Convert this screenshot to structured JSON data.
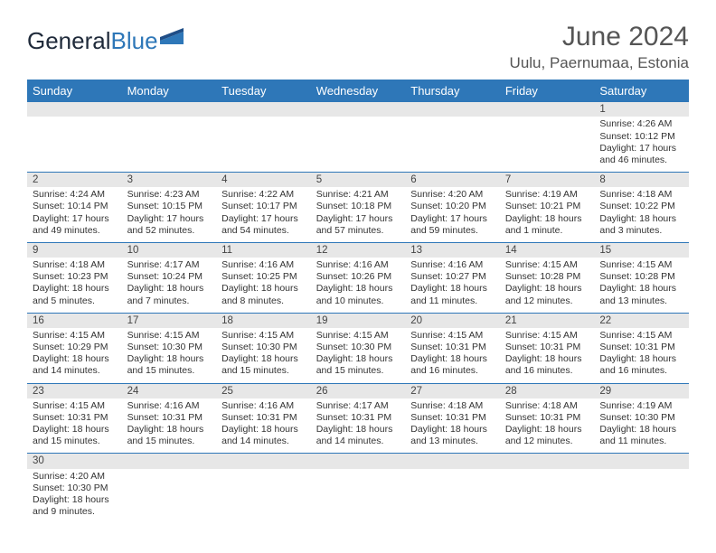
{
  "brand": {
    "part1": "General",
    "part2": "Blue"
  },
  "title": "June 2024",
  "location": "Uulu, Paernumaa, Estonia",
  "colors": {
    "header_bg": "#2e77b8",
    "header_text": "#ffffff",
    "daynum_bg": "#e7e7e7",
    "row_border": "#2e77b8",
    "text": "#333333",
    "title_text": "#555555"
  },
  "fonts": {
    "title_size_pt": 22,
    "location_size_pt": 13,
    "dayheader_size_pt": 10,
    "body_size_pt": 8,
    "family": "Arial"
  },
  "day_headers": [
    "Sunday",
    "Monday",
    "Tuesday",
    "Wednesday",
    "Thursday",
    "Friday",
    "Saturday"
  ],
  "weeks": [
    [
      null,
      null,
      null,
      null,
      null,
      null,
      {
        "n": "1",
        "sunrise": "Sunrise: 4:26 AM",
        "sunset": "Sunset: 10:12 PM",
        "daylight": "Daylight: 17 hours and 46 minutes."
      }
    ],
    [
      {
        "n": "2",
        "sunrise": "Sunrise: 4:24 AM",
        "sunset": "Sunset: 10:14 PM",
        "daylight": "Daylight: 17 hours and 49 minutes."
      },
      {
        "n": "3",
        "sunrise": "Sunrise: 4:23 AM",
        "sunset": "Sunset: 10:15 PM",
        "daylight": "Daylight: 17 hours and 52 minutes."
      },
      {
        "n": "4",
        "sunrise": "Sunrise: 4:22 AM",
        "sunset": "Sunset: 10:17 PM",
        "daylight": "Daylight: 17 hours and 54 minutes."
      },
      {
        "n": "5",
        "sunrise": "Sunrise: 4:21 AM",
        "sunset": "Sunset: 10:18 PM",
        "daylight": "Daylight: 17 hours and 57 minutes."
      },
      {
        "n": "6",
        "sunrise": "Sunrise: 4:20 AM",
        "sunset": "Sunset: 10:20 PM",
        "daylight": "Daylight: 17 hours and 59 minutes."
      },
      {
        "n": "7",
        "sunrise": "Sunrise: 4:19 AM",
        "sunset": "Sunset: 10:21 PM",
        "daylight": "Daylight: 18 hours and 1 minute."
      },
      {
        "n": "8",
        "sunrise": "Sunrise: 4:18 AM",
        "sunset": "Sunset: 10:22 PM",
        "daylight": "Daylight: 18 hours and 3 minutes."
      }
    ],
    [
      {
        "n": "9",
        "sunrise": "Sunrise: 4:18 AM",
        "sunset": "Sunset: 10:23 PM",
        "daylight": "Daylight: 18 hours and 5 minutes."
      },
      {
        "n": "10",
        "sunrise": "Sunrise: 4:17 AM",
        "sunset": "Sunset: 10:24 PM",
        "daylight": "Daylight: 18 hours and 7 minutes."
      },
      {
        "n": "11",
        "sunrise": "Sunrise: 4:16 AM",
        "sunset": "Sunset: 10:25 PM",
        "daylight": "Daylight: 18 hours and 8 minutes."
      },
      {
        "n": "12",
        "sunrise": "Sunrise: 4:16 AM",
        "sunset": "Sunset: 10:26 PM",
        "daylight": "Daylight: 18 hours and 10 minutes."
      },
      {
        "n": "13",
        "sunrise": "Sunrise: 4:16 AM",
        "sunset": "Sunset: 10:27 PM",
        "daylight": "Daylight: 18 hours and 11 minutes."
      },
      {
        "n": "14",
        "sunrise": "Sunrise: 4:15 AM",
        "sunset": "Sunset: 10:28 PM",
        "daylight": "Daylight: 18 hours and 12 minutes."
      },
      {
        "n": "15",
        "sunrise": "Sunrise: 4:15 AM",
        "sunset": "Sunset: 10:28 PM",
        "daylight": "Daylight: 18 hours and 13 minutes."
      }
    ],
    [
      {
        "n": "16",
        "sunrise": "Sunrise: 4:15 AM",
        "sunset": "Sunset: 10:29 PM",
        "daylight": "Daylight: 18 hours and 14 minutes."
      },
      {
        "n": "17",
        "sunrise": "Sunrise: 4:15 AM",
        "sunset": "Sunset: 10:30 PM",
        "daylight": "Daylight: 18 hours and 15 minutes."
      },
      {
        "n": "18",
        "sunrise": "Sunrise: 4:15 AM",
        "sunset": "Sunset: 10:30 PM",
        "daylight": "Daylight: 18 hours and 15 minutes."
      },
      {
        "n": "19",
        "sunrise": "Sunrise: 4:15 AM",
        "sunset": "Sunset: 10:30 PM",
        "daylight": "Daylight: 18 hours and 15 minutes."
      },
      {
        "n": "20",
        "sunrise": "Sunrise: 4:15 AM",
        "sunset": "Sunset: 10:31 PM",
        "daylight": "Daylight: 18 hours and 16 minutes."
      },
      {
        "n": "21",
        "sunrise": "Sunrise: 4:15 AM",
        "sunset": "Sunset: 10:31 PM",
        "daylight": "Daylight: 18 hours and 16 minutes."
      },
      {
        "n": "22",
        "sunrise": "Sunrise: 4:15 AM",
        "sunset": "Sunset: 10:31 PM",
        "daylight": "Daylight: 18 hours and 16 minutes."
      }
    ],
    [
      {
        "n": "23",
        "sunrise": "Sunrise: 4:15 AM",
        "sunset": "Sunset: 10:31 PM",
        "daylight": "Daylight: 18 hours and 15 minutes."
      },
      {
        "n": "24",
        "sunrise": "Sunrise: 4:16 AM",
        "sunset": "Sunset: 10:31 PM",
        "daylight": "Daylight: 18 hours and 15 minutes."
      },
      {
        "n": "25",
        "sunrise": "Sunrise: 4:16 AM",
        "sunset": "Sunset: 10:31 PM",
        "daylight": "Daylight: 18 hours and 14 minutes."
      },
      {
        "n": "26",
        "sunrise": "Sunrise: 4:17 AM",
        "sunset": "Sunset: 10:31 PM",
        "daylight": "Daylight: 18 hours and 14 minutes."
      },
      {
        "n": "27",
        "sunrise": "Sunrise: 4:18 AM",
        "sunset": "Sunset: 10:31 PM",
        "daylight": "Daylight: 18 hours and 13 minutes."
      },
      {
        "n": "28",
        "sunrise": "Sunrise: 4:18 AM",
        "sunset": "Sunset: 10:31 PM",
        "daylight": "Daylight: 18 hours and 12 minutes."
      },
      {
        "n": "29",
        "sunrise": "Sunrise: 4:19 AM",
        "sunset": "Sunset: 10:30 PM",
        "daylight": "Daylight: 18 hours and 11 minutes."
      }
    ],
    [
      {
        "n": "30",
        "sunrise": "Sunrise: 4:20 AM",
        "sunset": "Sunset: 10:30 PM",
        "daylight": "Daylight: 18 hours and 9 minutes."
      },
      null,
      null,
      null,
      null,
      null,
      null
    ]
  ]
}
